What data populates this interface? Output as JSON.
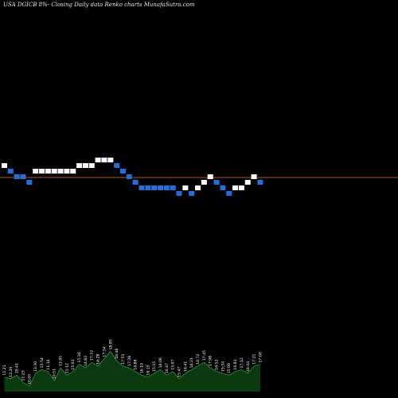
{
  "header": {
    "title": "USA DGICB 8%-  Closing Daily data  Renko  charts MunafaSutra.com"
  },
  "colors": {
    "background": "#000000",
    "up_brick": "#ffffff",
    "down_brick": "#1e6fe0",
    "reference_line": "#b5542d",
    "volume_fill": "#0c3a10",
    "volume_stroke": "#2a9c3a"
  },
  "chart_data": {
    "type": "renko",
    "title": "USA DGICB 8%-  Closing Daily data  Renko  charts MunafaSutra.com",
    "brick_levels": [
      13,
      12,
      11,
      11,
      10,
      12,
      12,
      12,
      12,
      12,
      12,
      12,
      13,
      13,
      13,
      14,
      14,
      14,
      13,
      12,
      11,
      10,
      9,
      9,
      9,
      9,
      9,
      9,
      8,
      9,
      8,
      9,
      10,
      11,
      10,
      9,
      8,
      9,
      9,
      10,
      11,
      10
    ],
    "brick_directions": [
      "up",
      "down",
      "down",
      "down",
      "down",
      "up",
      "up",
      "up",
      "up",
      "up",
      "up",
      "up",
      "up",
      "up",
      "up",
      "up",
      "up",
      "up",
      "down",
      "down",
      "down",
      "down",
      "down",
      "down",
      "down",
      "down",
      "down",
      "down",
      "down",
      "up",
      "down",
      "up",
      "up",
      "up",
      "down",
      "down",
      "down",
      "up",
      "up",
      "up",
      "up",
      "down"
    ],
    "reference_level": 10.5,
    "volume_values": [
      8,
      7,
      9,
      5,
      3,
      10,
      12,
      11,
      6,
      13,
      9,
      11,
      15,
      13,
      16,
      14,
      18,
      22,
      17,
      14,
      13,
      11,
      9,
      8,
      10,
      12,
      9,
      11,
      7,
      10,
      12,
      14,
      16,
      13,
      11,
      10,
      9,
      11,
      12,
      10,
      14,
      15
    ],
    "volume_labels": [
      "11:21",
      "13:20",
      "10:41",
      "11:23",
      "10:05",
      "13:30",
      "13:54",
      "11:14",
      "10:51",
      "13:95",
      "11:12",
      "15:03",
      "15:36",
      "14:82",
      "17:33",
      "16:28",
      "17:34",
      "18:85",
      "18:48",
      "17:53",
      "17:38",
      "16:88",
      "16:10",
      "16:15",
      "15:15",
      "16:06",
      "16:47",
      "15:07",
      "15:47",
      "16:41",
      "16:21",
      "16:72",
      "17:45",
      "17:98",
      "16:52",
      "15:34",
      "15:09",
      "16:83",
      "17:12",
      "16:44",
      "17:21",
      "17:00"
    ]
  }
}
